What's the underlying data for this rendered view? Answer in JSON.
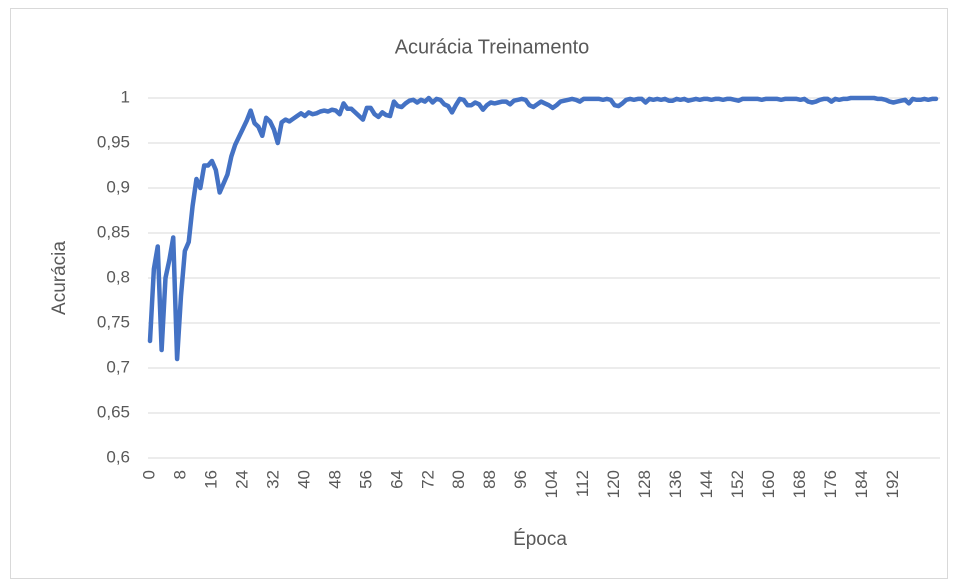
{
  "chart_data": {
    "type": "line",
    "title": "Acurácia Treinamento",
    "xlabel": "Época",
    "ylabel": "Acurácia",
    "x": [
      0,
      1,
      2,
      3,
      4,
      5,
      6,
      7,
      8,
      9,
      10,
      11,
      12,
      13,
      14,
      15,
      16,
      17,
      18,
      19,
      20,
      21,
      22,
      23,
      24,
      25,
      26,
      27,
      28,
      29,
      30,
      31,
      32,
      33,
      34,
      35,
      36,
      37,
      38,
      39,
      40,
      41,
      42,
      43,
      44,
      45,
      46,
      47,
      48,
      49,
      50,
      51,
      52,
      53,
      54,
      55,
      56,
      57,
      58,
      59,
      60,
      61,
      62,
      63,
      64,
      65,
      66,
      67,
      68,
      69,
      70,
      71,
      72,
      73,
      74,
      75,
      76,
      77,
      78,
      79,
      80,
      81,
      82,
      83,
      84,
      85,
      86,
      87,
      88,
      89,
      90,
      91,
      92,
      93,
      94,
      95,
      96,
      97,
      98,
      99,
      100,
      101,
      102,
      103,
      104,
      105,
      106,
      107,
      108,
      109,
      110,
      111,
      112,
      113,
      114,
      115,
      116,
      117,
      118,
      119,
      120,
      121,
      122,
      123,
      124,
      125,
      126,
      127,
      128,
      129,
      130,
      131,
      132,
      133,
      134,
      135,
      136,
      137,
      138,
      139,
      140,
      141,
      142,
      143,
      144,
      145,
      146,
      147,
      148,
      149,
      150,
      151,
      152,
      153,
      154,
      155,
      156,
      157,
      158,
      159,
      160,
      161,
      162,
      163,
      164,
      165,
      166,
      167,
      168,
      169,
      170,
      171,
      172,
      173,
      174,
      175,
      176,
      177,
      178,
      179,
      180,
      181,
      182,
      183,
      184,
      185,
      186,
      187,
      188,
      189,
      190,
      191,
      192,
      193,
      194,
      195,
      196,
      197,
      198,
      199,
      200,
      201,
      202,
      203
    ],
    "series": [
      {
        "name": "Acurácia",
        "color": "#4472c4",
        "values": [
          0.73,
          0.81,
          0.835,
          0.72,
          0.8,
          0.82,
          0.845,
          0.71,
          0.78,
          0.83,
          0.84,
          0.88,
          0.91,
          0.9,
          0.925,
          0.925,
          0.93,
          0.92,
          0.895,
          0.905,
          0.915,
          0.935,
          0.948,
          0.957,
          0.966,
          0.975,
          0.986,
          0.972,
          0.968,
          0.958,
          0.978,
          0.974,
          0.965,
          0.95,
          0.973,
          0.976,
          0.974,
          0.977,
          0.98,
          0.983,
          0.98,
          0.984,
          0.982,
          0.983,
          0.985,
          0.986,
          0.985,
          0.987,
          0.986,
          0.982,
          0.994,
          0.988,
          0.988,
          0.984,
          0.98,
          0.976,
          0.989,
          0.989,
          0.982,
          0.979,
          0.984,
          0.981,
          0.98,
          0.996,
          0.991,
          0.99,
          0.994,
          0.997,
          0.998,
          0.995,
          0.998,
          0.996,
          1,
          0.995,
          0.999,
          0.998,
          0.993,
          0.991,
          0.984,
          0.992,
          0.999,
          0.998,
          0.992,
          0.992,
          0.995,
          0.993,
          0.987,
          0.992,
          0.995,
          0.994,
          0.995,
          0.996,
          0.996,
          0.993,
          0.997,
          0.998,
          0.999,
          0.998,
          0.992,
          0.99,
          0.993,
          0.996,
          0.994,
          0.992,
          0.989,
          0.992,
          0.996,
          0.997,
          0.998,
          0.999,
          0.998,
          0.996,
          0.999,
          0.999,
          0.999,
          0.999,
          0.999,
          0.998,
          0.999,
          0.998,
          0.992,
          0.991,
          0.994,
          0.998,
          0.999,
          0.998,
          0.999,
          0.999,
          0.995,
          0.999,
          0.998,
          0.999,
          0.998,
          0.999,
          0.997,
          0.997,
          0.999,
          0.998,
          0.999,
          0.997,
          0.998,
          0.999,
          0.998,
          0.999,
          0.999,
          0.998,
          0.999,
          0.999,
          0.998,
          0.999,
          0.999,
          0.998,
          0.997,
          0.999,
          0.999,
          0.999,
          0.999,
          0.999,
          0.998,
          0.999,
          0.999,
          0.999,
          0.999,
          0.998,
          0.999,
          0.999,
          0.999,
          0.999,
          0.998,
          0.999,
          0.996,
          0.995,
          0.996,
          0.998,
          0.999,
          0.999,
          0.996,
          0.999,
          0.998,
          0.999,
          0.999,
          1,
          1,
          1,
          1,
          1,
          1,
          1,
          0.999,
          0.999,
          0.998,
          0.996,
          0.995,
          0.996,
          0.997,
          0.998,
          0.994,
          0.999,
          0.998,
          0.998,
          0.999,
          0.998,
          0.999,
          0.999
        ]
      }
    ],
    "xlim": [
      0,
      203
    ],
    "xticks": [
      0,
      8,
      16,
      24,
      32,
      40,
      48,
      56,
      64,
      72,
      80,
      88,
      96,
      104,
      112,
      120,
      128,
      136,
      144,
      152,
      160,
      168,
      176,
      184,
      192
    ],
    "ylim": [
      0.6,
      1
    ],
    "yticks": [
      {
        "value": 0.6,
        "label": "0,6"
      },
      {
        "value": 0.65,
        "label": "0,65"
      },
      {
        "value": 0.7,
        "label": "0,7"
      },
      {
        "value": 0.75,
        "label": "0,75"
      },
      {
        "value": 0.8,
        "label": "0,8"
      },
      {
        "value": 0.85,
        "label": "0,85"
      },
      {
        "value": 0.9,
        "label": "0,9"
      },
      {
        "value": 0.95,
        "label": "0,95"
      },
      1
    ],
    "grid": true
  }
}
